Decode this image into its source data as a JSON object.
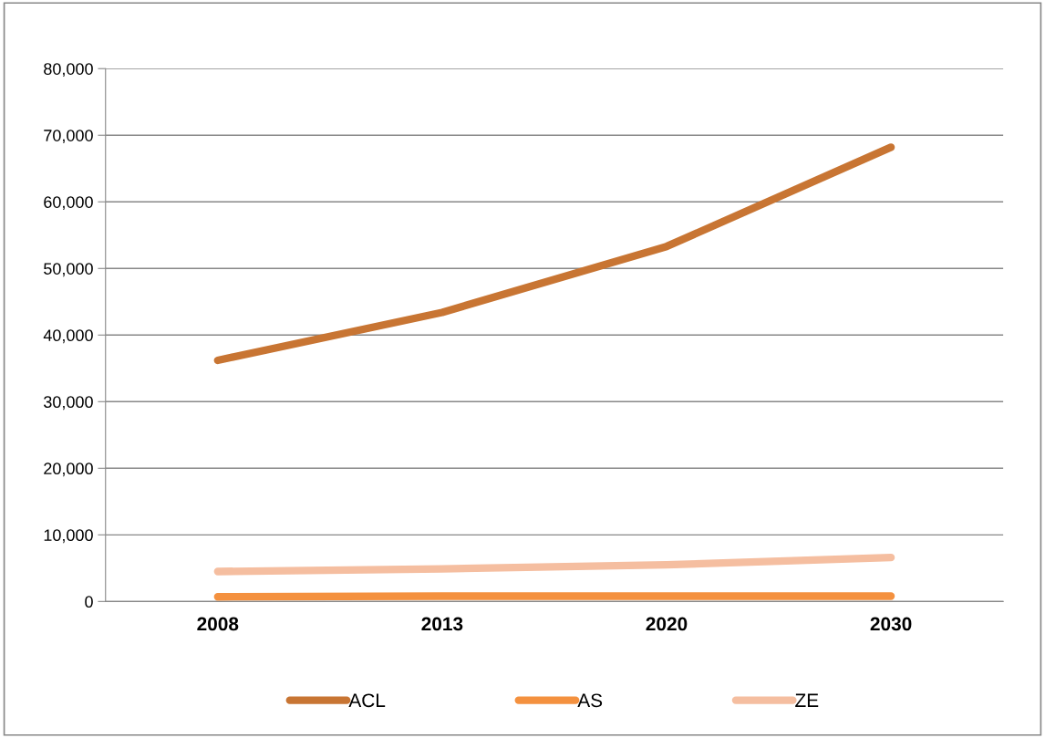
{
  "chart_data": {
    "type": "line",
    "categories": [
      "2008",
      "2013",
      "2020",
      "2030"
    ],
    "series": [
      {
        "name": "ACL",
        "color": "#c87533",
        "values": [
          36200,
          43400,
          53300,
          68200
        ]
      },
      {
        "name": "AS",
        "color": "#f4913f",
        "values": [
          700,
          800,
          800,
          800
        ]
      },
      {
        "name": "ZE",
        "color": "#f5bea0",
        "values": [
          4500,
          4900,
          5500,
          6600
        ]
      }
    ],
    "ylim": [
      0,
      80000
    ],
    "yticks": [
      {
        "value": 0,
        "label": "0"
      },
      {
        "value": 10000,
        "label": "10,000"
      },
      {
        "value": 20000,
        "label": "20,000"
      },
      {
        "value": 30000,
        "label": "30,000"
      },
      {
        "value": 40000,
        "label": "40,000"
      },
      {
        "value": 50000,
        "label": "50,000"
      },
      {
        "value": 60000,
        "label": "60,000"
      },
      {
        "value": 70000,
        "label": "70,000"
      },
      {
        "value": 80000,
        "label": "80,000"
      }
    ],
    "grid": "y",
    "legend": "bottom",
    "marker": "none",
    "line_style": "solid"
  }
}
